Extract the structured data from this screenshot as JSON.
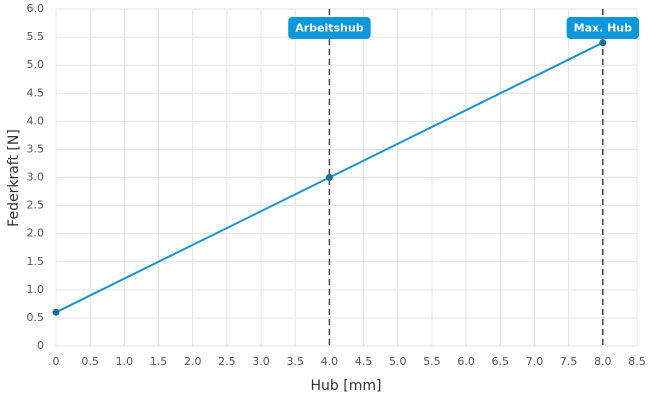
{
  "chart_data": {
    "type": "line",
    "x": [
      0,
      4,
      8
    ],
    "values": [
      0.6,
      3.0,
      5.4
    ],
    "color": "#1a93cf",
    "marker_color": "#1b6f99",
    "xlabel": "Hub [mm]",
    "ylabel": "Federkraft [N]",
    "xlim": [
      0,
      8.5
    ],
    "ylim": [
      0,
      6
    ],
    "grid": true,
    "xticks": [
      0,
      0.5,
      {
        "value": 1,
        "label": "1.0"
      },
      1.5,
      {
        "value": 2,
        "label": "2.0"
      },
      2.5,
      {
        "value": 3,
        "label": "3.0"
      },
      3.5,
      {
        "value": 4,
        "label": "4.0"
      },
      4.5,
      {
        "value": 5,
        "label": "5.0"
      },
      5.5,
      {
        "value": 6,
        "label": "6.0"
      },
      6.5,
      {
        "value": 7,
        "label": "7.0"
      },
      7.5,
      {
        "value": 8,
        "label": "8.0"
      },
      8.5
    ],
    "yticks": [
      0,
      0.5,
      {
        "value": 1,
        "label": "1.0"
      },
      1.5,
      {
        "value": 2,
        "label": "2.0"
      },
      2.5,
      {
        "value": 3,
        "label": "3.0"
      },
      3.5,
      {
        "value": 4,
        "label": "4.0"
      },
      4.5,
      {
        "value": 5,
        "label": "5.0"
      },
      5.5,
      {
        "value": 6,
        "label": "6.0"
      }
    ],
    "annotations": [
      {
        "x": 4,
        "label": "Arbeitshub"
      },
      {
        "x": 8,
        "label": "Max. Hub"
      }
    ],
    "annotation_color": "#0b98da"
  }
}
